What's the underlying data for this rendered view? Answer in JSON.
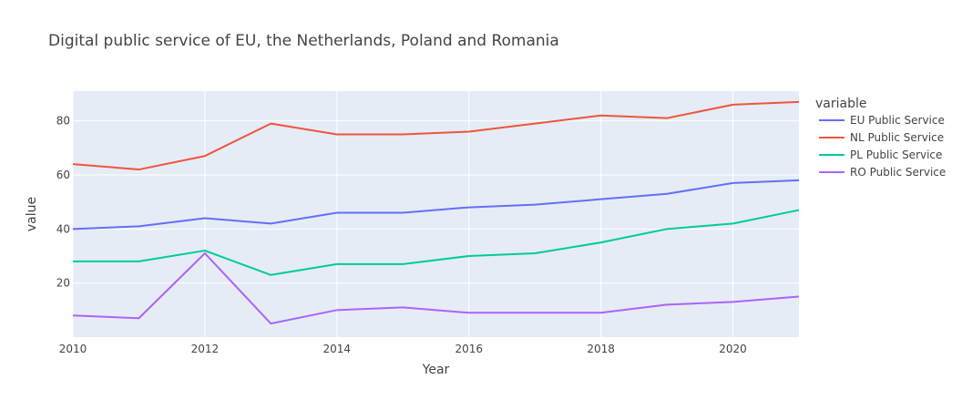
{
  "chart_data": {
    "type": "line",
    "title": "Digital public service of EU, the Netherlands, Poland and Romania",
    "xlabel": "Year",
    "ylabel": "value",
    "xlim": [
      2010,
      2021
    ],
    "ylim": [
      0,
      91
    ],
    "x_ticks": [
      2010,
      2012,
      2014,
      2016,
      2018,
      2020
    ],
    "y_ticks": [
      20,
      40,
      60,
      80
    ],
    "legend_title": "variable",
    "legend_position": "right",
    "grid": true,
    "x": [
      2010,
      2011,
      2012,
      2013,
      2014,
      2015,
      2016,
      2017,
      2018,
      2019,
      2020,
      2021
    ],
    "series": [
      {
        "name": "EU Public Service",
        "color": "#636efa",
        "values": [
          40,
          41,
          44,
          42,
          46,
          46,
          48,
          49,
          51,
          53,
          57,
          58
        ]
      },
      {
        "name": "NL Public Service",
        "color": "#ef553b",
        "values": [
          64,
          62,
          67,
          79,
          75,
          75,
          76,
          79,
          82,
          81,
          86,
          87
        ]
      },
      {
        "name": "PL Public Service",
        "color": "#00cc96",
        "values": [
          28,
          28,
          32,
          23,
          27,
          27,
          30,
          31,
          35,
          40,
          42,
          47
        ]
      },
      {
        "name": "RO Public Service",
        "color": "#ab63fa",
        "values": [
          8,
          7,
          31,
          5,
          10,
          11,
          9,
          9,
          9,
          12,
          13,
          15
        ]
      }
    ]
  }
}
